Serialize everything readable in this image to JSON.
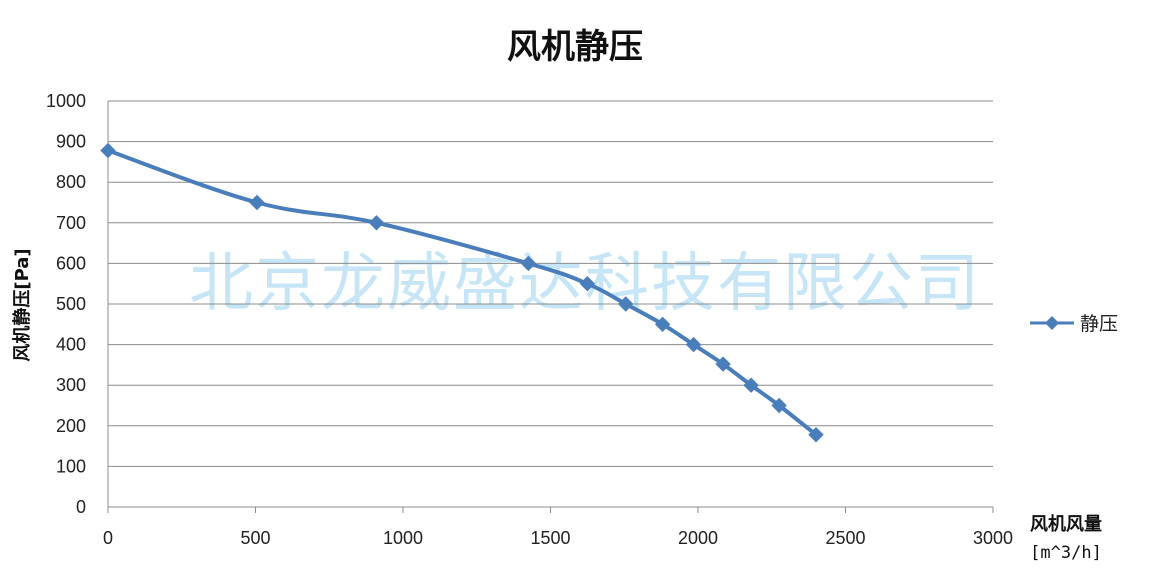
{
  "chart_data": {
    "type": "line",
    "title": "风机静压",
    "xlabel": "风机风量",
    "xunit": "[m^3/h]",
    "ylabel": "风机静压[Pa]",
    "xlim": [
      0,
      3000
    ],
    "ylim": [
      0,
      1000
    ],
    "x_ticks": [
      0,
      500,
      1000,
      1500,
      2000,
      2500,
      3000
    ],
    "y_ticks": [
      0,
      100,
      200,
      300,
      400,
      500,
      600,
      700,
      800,
      900,
      1000
    ],
    "grid": true,
    "legend_position": "right",
    "series": [
      {
        "name": "静压",
        "color": "#4a7ebb",
        "marker": "diamond",
        "x": [
          0,
          505,
          910,
          1425,
          1625,
          1755,
          1880,
          1985,
          2085,
          2180,
          2275,
          2400
        ],
        "y": [
          878,
          750,
          700,
          600,
          550,
          500,
          450,
          400,
          352,
          300,
          250,
          178
        ]
      }
    ]
  },
  "watermark": "北京龙威盛达科技有限公司"
}
